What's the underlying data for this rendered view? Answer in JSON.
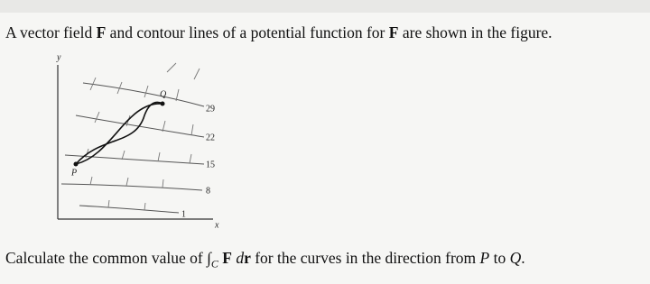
{
  "question": {
    "parts": [
      "A vector field ",
      "F",
      " and contour lines of a potential function for ",
      "F",
      " are shown in the figure."
    ]
  },
  "figure": {
    "axis_labels": {
      "x": "x",
      "y": "y"
    },
    "points": {
      "P": "P",
      "Q": "Q"
    },
    "contour_labels": [
      "29",
      "22",
      "15",
      "8",
      "1"
    ]
  },
  "prompt": {
    "parts": [
      "Calculate the common value of ",
      "∫",
      "C",
      "F",
      " d",
      "r",
      " for the curves in the direction from ",
      "P",
      " to ",
      "Q",
      "."
    ]
  }
}
